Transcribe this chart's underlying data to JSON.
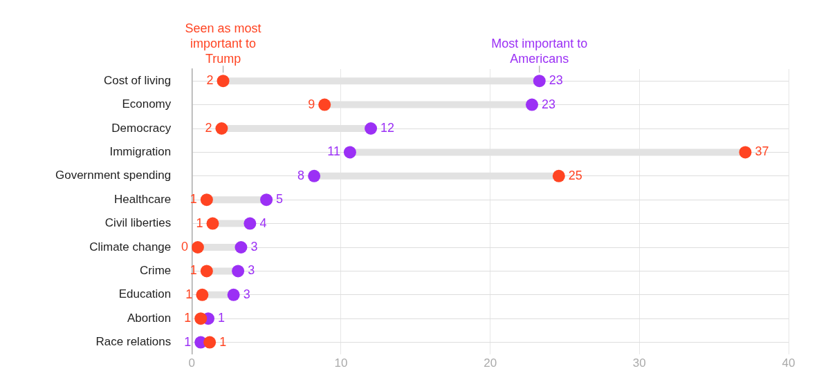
{
  "chart_data": {
    "type": "scatter",
    "orientation": "horizontal",
    "categories": [
      "Cost of living",
      "Economy",
      "Democracy",
      "Immigration",
      "Government spending",
      "Healthcare",
      "Civil liberties",
      "Climate change",
      "Crime",
      "Education",
      "Abortion",
      "Race relations"
    ],
    "series": [
      {
        "name": "Seen as most important to Trump",
        "color": "#ff4422",
        "values": [
          2.1,
          8.9,
          2.0,
          37.1,
          24.6,
          1.0,
          1.4,
          0.4,
          1.0,
          0.7,
          0.6,
          1.2
        ],
        "value_labels": [
          "2",
          "9",
          "2",
          "37",
          "25",
          "1",
          "1",
          "0",
          "1",
          "1",
          "1",
          "1"
        ]
      },
      {
        "name": "Most important to Americans",
        "color": "#9b30f5",
        "values": [
          23.3,
          22.8,
          12.0,
          10.6,
          8.2,
          5.0,
          3.9,
          3.3,
          3.1,
          2.8,
          1.1,
          0.6
        ],
        "value_labels": [
          "23",
          "23",
          "12",
          "11",
          "8",
          "5",
          "4",
          "3",
          "3",
          "3",
          "1",
          "1"
        ]
      }
    ],
    "xlim": [
      0,
      40
    ],
    "xticks": [
      0,
      10,
      20,
      30,
      40
    ],
    "grid": true,
    "legend": false,
    "marker": "circle"
  }
}
